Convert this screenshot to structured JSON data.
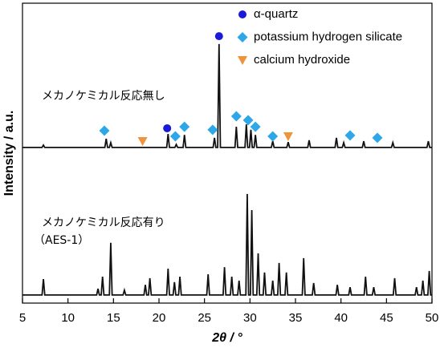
{
  "chart_data": {
    "type": "line",
    "xlabel": "2θ / °",
    "ylabel": "Intensity / a.u.",
    "xlim": [
      5,
      50
    ],
    "xticks": [
      5,
      10,
      15,
      20,
      25,
      30,
      35,
      40,
      45,
      50
    ],
    "ylim": [
      0,
      100
    ],
    "legend": "upper right",
    "series": [
      {
        "name": "メカノケミカル反応無し",
        "type": "line",
        "color": "#111111",
        "x": [
          5,
          7.15,
          7.3,
          7.45,
          14.05,
          14.2,
          14.35,
          14.55,
          14.7,
          14.85,
          20.85,
          21.0,
          21.15,
          21.75,
          21.9,
          22.05,
          22.65,
          22.8,
          22.95,
          25.95,
          26.1,
          26.25,
          26.45,
          26.6,
          26.75,
          28.35,
          28.5,
          28.65,
          29.45,
          29.6,
          29.75,
          29.95,
          30.1,
          30.25,
          30.45,
          30.6,
          30.75,
          32.35,
          32.5,
          32.65,
          34.05,
          34.2,
          34.35,
          36.35,
          36.5,
          36.65,
          39.35,
          39.5,
          39.65,
          40.15,
          40.3,
          40.45,
          42.35,
          42.5,
          42.65,
          45.55,
          45.7,
          45.85,
          49.45,
          49.6,
          49.75,
          50
        ],
        "values": [
          51.9,
          51.9,
          52.7,
          51.9,
          51.9,
          54.8,
          51.9,
          51.9,
          53.5,
          51.9,
          51.9,
          56.4,
          51.9,
          51.9,
          52.9,
          51.9,
          51.9,
          56.1,
          51.9,
          51.9,
          55.1,
          51.9,
          51.9,
          86.4,
          51.9,
          51.9,
          58.8,
          51.9,
          51.9,
          59.6,
          51.9,
          51.9,
          57.8,
          51.9,
          51.9,
          56.1,
          51.9,
          51.9,
          54.0,
          51.9,
          51.9,
          53.7,
          51.9,
          51.9,
          54.3,
          51.9,
          51.9,
          55.1,
          51.9,
          51.9,
          53.5,
          51.9,
          51.9,
          54.0,
          51.9,
          51.9,
          53.5,
          51.9,
          51.9,
          54.0,
          51.9,
          51.9
        ]
      },
      {
        "name": "メカノケミカル反応有り",
        "sample_id": "（AES-1）",
        "type": "line",
        "color": "#111111",
        "x": [
          5,
          7.15,
          7.3,
          7.45,
          13.15,
          13.3,
          13.45,
          13.65,
          13.8,
          13.95,
          14.55,
          14.7,
          14.85,
          16.05,
          16.2,
          16.35,
          18.35,
          18.5,
          18.65,
          18.85,
          19.0,
          19.15,
          20.85,
          21.0,
          21.15,
          21.55,
          21.7,
          21.85,
          22.15,
          22.3,
          22.45,
          25.25,
          25.4,
          25.55,
          27.05,
          27.2,
          27.35,
          27.85,
          28.0,
          28.15,
          28.65,
          28.8,
          28.95,
          29.55,
          29.7,
          29.85,
          30.05,
          30.2,
          30.35,
          30.75,
          30.9,
          31.05,
          31.45,
          31.6,
          31.75,
          32.35,
          32.5,
          32.65,
          33.05,
          33.2,
          33.35,
          33.85,
          34.0,
          34.15,
          35.75,
          35.9,
          36.05,
          36.85,
          37.0,
          37.15,
          39.45,
          39.6,
          39.75,
          40.85,
          41.0,
          41.15,
          42.55,
          42.7,
          42.85,
          43.45,
          43.6,
          43.75,
          45.75,
          45.9,
          46.05,
          48.15,
          48.3,
          48.45,
          48.85,
          49.0,
          49.15,
          49.55,
          49.7,
          49.85,
          50
        ],
        "values": [
          2.7,
          2.7,
          8.0,
          2.7,
          2.7,
          4.8,
          2.7,
          2.7,
          8.8,
          2.7,
          2.7,
          20.1,
          2.7,
          2.7,
          4.3,
          2.7,
          2.7,
          6.1,
          2.7,
          2.7,
          8.3,
          2.7,
          2.7,
          11.5,
          2.7,
          2.7,
          7.0,
          2.7,
          2.7,
          8.8,
          2.7,
          2.7,
          9.6,
          2.7,
          2.7,
          12.0,
          2.7,
          2.7,
          8.8,
          2.7,
          2.7,
          7.5,
          2.7,
          2.7,
          36.4,
          2.7,
          2.7,
          31.0,
          2.7,
          2.7,
          16.6,
          2.7,
          2.7,
          10.2,
          2.7,
          2.7,
          7.5,
          2.7,
          2.7,
          13.4,
          2.7,
          2.7,
          10.2,
          2.7,
          2.7,
          15.0,
          2.7,
          2.7,
          6.7,
          2.7,
          2.7,
          6.1,
          2.7,
          2.7,
          5.3,
          2.7,
          2.7,
          8.8,
          2.7,
          2.7,
          5.3,
          2.7,
          2.7,
          8.3,
          2.7,
          2.7,
          5.3,
          2.7,
          2.7,
          7.5,
          2.7,
          2.7,
          10.7,
          2.7,
          2.7
        ]
      },
      {
        "name": "α-quartz",
        "type": "scatter",
        "marker": "circle",
        "color": "#1a1adb",
        "x": [
          20.9,
          26.6
        ],
        "values": [
          58.3,
          89.0
        ]
      },
      {
        "name": "potassium hydrogen silicate",
        "type": "scatter",
        "marker": "diamond",
        "color": "#2ea7e8",
        "x": [
          14.0,
          21.8,
          22.8,
          25.9,
          28.5,
          29.8,
          30.6,
          32.5,
          41.0,
          44.0
        ],
        "values": [
          57.5,
          55.6,
          58.8,
          57.8,
          62.3,
          61.0,
          58.8,
          55.6,
          55.9,
          55.1
        ]
      },
      {
        "name": "calcium hydroxide",
        "type": "scatter",
        "marker": "triangle",
        "color": "#f0943c",
        "x": [
          18.2,
          34.2
        ],
        "values": [
          54.0,
          55.6
        ]
      }
    ]
  }
}
